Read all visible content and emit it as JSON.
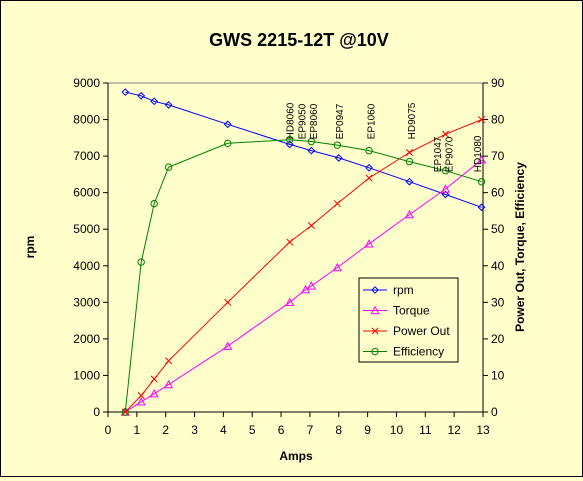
{
  "chart_data": {
    "type": "line",
    "title": "GWS 2215-12T @10V",
    "xlabel": "Amps",
    "ylabel_left": "rpm",
    "ylabel_right": "Power Out, Torque, Efficiency",
    "xlim": [
      0,
      13
    ],
    "xticks": [
      "0",
      "1",
      "2",
      "3",
      "4",
      "5",
      "6",
      "7",
      "8",
      "9",
      "10",
      "11",
      "12",
      "13"
    ],
    "ylim_left": [
      0,
      9000
    ],
    "yticks_left": [
      "0",
      "1000",
      "2000",
      "3000",
      "4000",
      "5000",
      "6000",
      "7000",
      "8000",
      "9000"
    ],
    "ylim_right": [
      0,
      90
    ],
    "yticks_right": [
      "0",
      "10",
      "20",
      "30",
      "40",
      "50",
      "60",
      "70",
      "80",
      "90"
    ],
    "grid": false,
    "legend_position": "bottom-right",
    "series": [
      {
        "name": "rpm",
        "axis": "left",
        "color": "#0000ff",
        "marker": "diamond",
        "x": [
          0.6,
          1.15,
          1.6,
          2.1,
          4.15,
          6.3,
          7.05,
          8.0,
          9.05,
          10.45,
          11.7,
          12.95
        ],
        "y": [
          8750,
          8650,
          8500,
          8400,
          7870,
          7320,
          7150,
          6950,
          6680,
          6300,
          5950,
          5600
        ]
      },
      {
        "name": "Torque",
        "axis": "right",
        "color": "#ff00ff",
        "marker": "triangle",
        "x": [
          0.6,
          1.15,
          1.6,
          2.1,
          4.15,
          6.3,
          6.85,
          7.05,
          7.95,
          9.05,
          10.45,
          11.7,
          12.95
        ],
        "y": [
          0,
          2.8,
          5,
          7.5,
          18,
          30,
          33.5,
          34.5,
          39.5,
          46,
          54,
          61,
          69
        ]
      },
      {
        "name": "Power Out",
        "axis": "right",
        "color": "#ff0000",
        "marker": "x",
        "x": [
          0.6,
          1.15,
          1.6,
          2.1,
          4.15,
          6.3,
          7.05,
          7.95,
          9.05,
          10.45,
          11.7,
          12.95
        ],
        "y": [
          0,
          4.5,
          9,
          14,
          30,
          46.5,
          51,
          57,
          64,
          71,
          76,
          80
        ]
      },
      {
        "name": "Efficiency",
        "axis": "right",
        "color": "#008000",
        "marker": "circle",
        "x": [
          0.6,
          1.15,
          1.6,
          2.1,
          4.15,
          6.3,
          7.05,
          7.95,
          9.05,
          10.45,
          11.7,
          12.95
        ],
        "y": [
          0,
          41,
          57,
          67,
          73.5,
          74.5,
          74,
          73,
          71.5,
          68.5,
          66,
          63
        ]
      }
    ],
    "annotations": [
      {
        "text": "HD8060",
        "x": 6.3,
        "y": 73.5
      },
      {
        "text": "EP9050",
        "x": 6.7,
        "y": 73.5
      },
      {
        "text": "EP8060",
        "x": 7.1,
        "y": 73.5
      },
      {
        "text": "EP0947",
        "x": 8.0,
        "y": 73.5
      },
      {
        "text": "EP1060",
        "x": 9.1,
        "y": 73.5
      },
      {
        "text": "HD9075",
        "x": 10.5,
        "y": 73.5
      },
      {
        "text": "EP1047",
        "x": 11.4,
        "y": 64.5
      },
      {
        "text": "EP9070",
        "x": 11.8,
        "y": 64.5
      },
      {
        "text": "HD1080",
        "x": 12.8,
        "y": 64.5
      }
    ]
  }
}
